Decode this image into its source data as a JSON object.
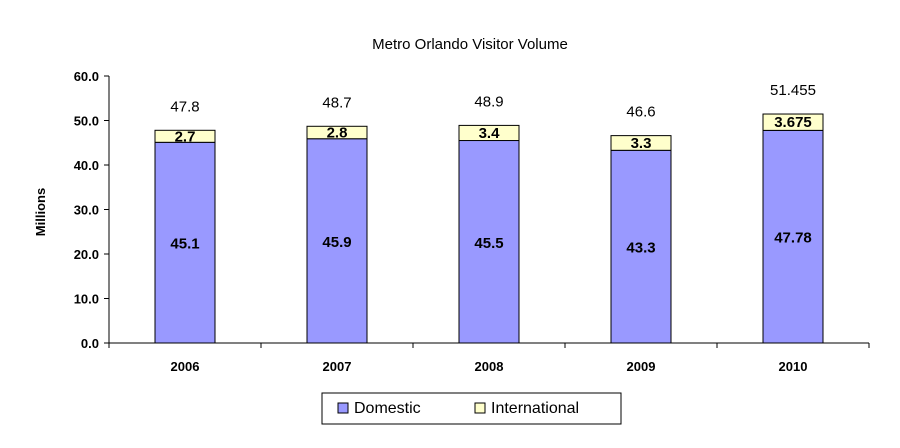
{
  "chart_data": {
    "type": "bar",
    "stacked": true,
    "title": "Metro Orlando Visitor Volume",
    "xlabel": "",
    "ylabel": "Millions",
    "ylim": [
      0,
      60
    ],
    "yticks": [
      "0.0",
      "10.0",
      "20.0",
      "30.0",
      "40.0",
      "50.0",
      "60.0"
    ],
    "categories": [
      "2006",
      "2007",
      "2008",
      "2009",
      "2010"
    ],
    "series": [
      {
        "name": "Domestic",
        "color": "#9999ff",
        "values": [
          45.1,
          45.9,
          45.5,
          43.3,
          47.78
        ],
        "labels": [
          "45.1",
          "45.9",
          "45.5",
          "43.3",
          "47.78"
        ]
      },
      {
        "name": "International",
        "color": "#ffffcc",
        "values": [
          2.7,
          2.8,
          3.4,
          3.3,
          3.675
        ],
        "labels": [
          "2.7",
          "2.8",
          "3.4",
          "3.3",
          "3.675"
        ]
      }
    ],
    "totals": [
      "47.8",
      "48.7",
      "48.9",
      "46.6",
      "51.455"
    ],
    "grid": false,
    "legend_position": "bottom"
  }
}
